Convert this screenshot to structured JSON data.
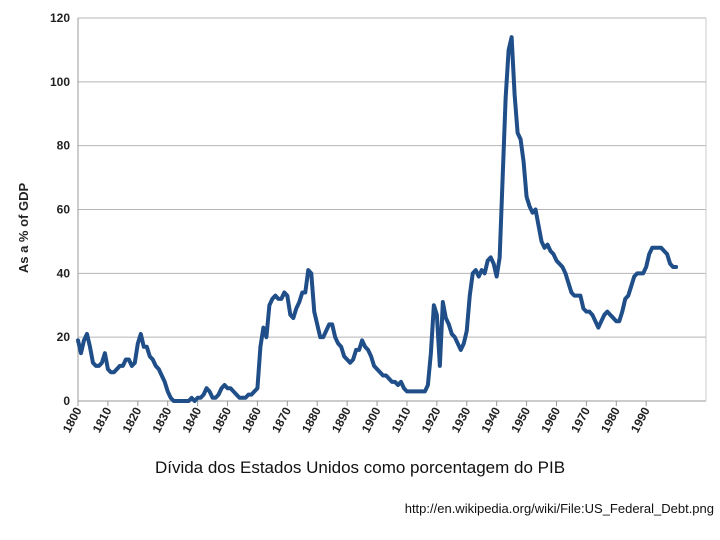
{
  "caption": "Dívida dos Estados Unidos como porcentagem do PIB",
  "source": "http://en.wikipedia.org/wiki/File:US_Federal_Debt.png",
  "chart_data": {
    "type": "line",
    "title": "",
    "xlabel": "",
    "ylabel": "As a % of GDP",
    "xlim": [
      1800,
      2010
    ],
    "ylim": [
      0,
      120
    ],
    "grid": true,
    "y_ticks": [
      "0",
      "20",
      "40",
      "60",
      "80",
      "100",
      "120"
    ],
    "x_ticks": [
      "1800",
      "1810",
      "1820",
      "1830",
      "1840",
      "1850",
      "1860",
      "1870",
      "1880",
      "1890",
      "1900",
      "1910",
      "1920",
      "1930",
      "1940",
      "1950",
      "1960",
      "1970",
      "1980",
      "1990"
    ],
    "line_color": "#1f4e89",
    "series": [
      {
        "x": [
          1800,
          1801,
          1802,
          1803,
          1804,
          1805,
          1806,
          1807,
          1808,
          1809,
          1810,
          1811,
          1812,
          1813,
          1814,
          1815,
          1816,
          1817,
          1818,
          1819,
          1820,
          1821,
          1822,
          1823,
          1824,
          1825,
          1826,
          1827,
          1828,
          1829,
          1830,
          1831,
          1832,
          1833,
          1834,
          1835,
          1836,
          1837,
          1838,
          1839,
          1840,
          1841,
          1842,
          1843,
          1844,
          1845,
          1846,
          1847,
          1848,
          1849,
          1850,
          1851,
          1852,
          1853,
          1854,
          1855,
          1856,
          1857,
          1858,
          1859,
          1860,
          1861,
          1862,
          1863,
          1864,
          1865,
          1866,
          1867,
          1868,
          1869,
          1870,
          1871,
          1872,
          1873,
          1874,
          1875,
          1876,
          1877,
          1878,
          1879,
          1880,
          1881,
          1882,
          1883,
          1884,
          1885,
          1886,
          1887,
          1888,
          1889,
          1890,
          1891,
          1892,
          1893,
          1894,
          1895,
          1896,
          1897,
          1898,
          1899,
          1900,
          1901,
          1902,
          1903,
          1904,
          1905,
          1906,
          1907,
          1908,
          1909,
          1910,
          1911,
          1912,
          1913,
          1914,
          1915,
          1916,
          1917,
          1918,
          1919,
          1920,
          1921,
          1922,
          1923,
          1924,
          1925,
          1926,
          1927,
          1928,
          1929,
          1930,
          1931,
          1932,
          1933,
          1934,
          1935,
          1936,
          1937,
          1938,
          1939,
          1940,
          1941,
          1942,
          1943,
          1944,
          1945,
          1946,
          1947,
          1948,
          1949,
          1950,
          1951,
          1952,
          1953,
          1954,
          1955,
          1956,
          1957,
          1958,
          1959,
          1960,
          1961,
          1962,
          1963,
          1964,
          1965,
          1966,
          1967,
          1968,
          1969,
          1970,
          1971,
          1972,
          1973,
          1974,
          1975,
          1976,
          1977,
          1978,
          1979,
          1980,
          1981,
          1982,
          1983,
          1984,
          1985,
          1986,
          1987,
          1988,
          1989,
          1990,
          1991,
          1992,
          1993,
          1994,
          1995,
          1996,
          1997,
          1998,
          1999,
          2000
        ],
        "y": [
          19,
          15,
          19,
          21,
          17,
          12,
          11,
          11,
          12,
          15,
          10,
          9,
          9,
          10,
          11,
          11,
          13,
          13,
          11,
          12,
          18,
          21,
          17,
          17,
          14,
          13,
          11,
          10,
          8,
          6,
          3,
          1,
          0,
          0,
          0,
          0,
          0,
          0,
          1,
          0,
          1,
          1,
          2,
          4,
          3,
          1,
          1,
          2,
          4,
          5,
          4,
          4,
          3,
          2,
          1,
          1,
          1,
          2,
          2,
          3,
          4,
          17,
          23,
          20,
          30,
          32,
          33,
          32,
          32,
          34,
          33,
          27,
          26,
          29,
          31,
          34,
          34,
          41,
          40,
          28,
          24,
          20,
          20,
          22,
          24,
          24,
          20,
          18,
          17,
          14,
          13,
          12,
          13,
          16,
          16,
          19,
          17,
          16,
          14,
          11,
          10,
          9,
          8,
          8,
          7,
          6,
          6,
          5,
          6,
          4,
          3,
          3,
          3,
          3,
          3,
          3,
          3,
          5,
          15,
          30,
          27,
          11,
          31,
          26,
          24,
          21,
          20,
          18,
          16,
          18,
          22,
          33,
          40,
          41,
          39,
          41,
          40,
          44,
          45,
          43,
          39,
          45,
          70,
          95,
          110,
          114,
          96,
          84,
          82,
          75,
          64,
          61,
          59,
          60,
          55,
          50,
          48,
          49,
          47,
          46,
          44,
          43,
          42,
          40,
          37,
          34,
          33,
          33,
          33,
          29,
          28,
          28,
          27,
          25,
          23,
          25,
          27,
          28,
          27,
          26,
          25,
          25,
          28,
          32,
          33,
          36,
          39,
          40,
          40,
          40,
          42,
          46,
          48,
          48,
          48,
          48,
          47,
          46,
          43,
          42,
          42
        ]
      }
    ]
  }
}
